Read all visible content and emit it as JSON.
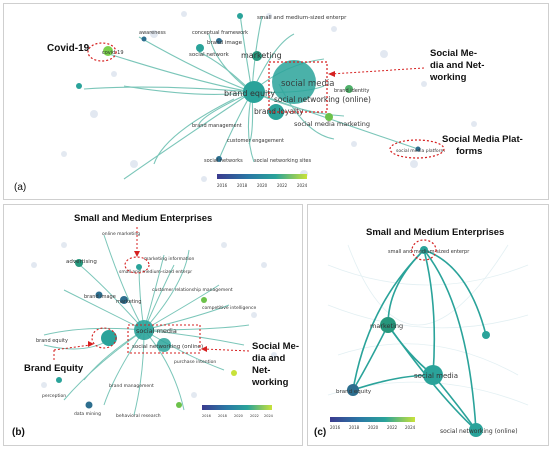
{
  "panels": {
    "a": {
      "label": "(a)",
      "annotations": {
        "covid": "Covid-19",
        "social_media_networking_1": "Social Me-",
        "social_media_networking_2": "dia and Net-",
        "social_media_networking_3": "working",
        "platforms_1": "Social Media Plat-",
        "platforms_2": "forms"
      },
      "nodes": {
        "marketing": "marketing",
        "social_media": "social media",
        "social_networking_online": "social networking (online)",
        "brand_equity": "brand equity",
        "brand_loyalty": "brand loyalty",
        "sme": "small and medium-sized enterpr",
        "social_network": "social network",
        "brand_image": "brand image",
        "conceptual_framework": "conceptual framework",
        "awareness": "awareness",
        "covid19": "covid-19",
        "brand_management": "brand management",
        "customer_engagement": "customer engagement",
        "social_networks": "social networks",
        "social_networking_sites": "social networking sites",
        "social_media_platform": "social media platform",
        "social_media_marketing": "social media marketing",
        "brand_identity": "brand identity"
      },
      "legend": [
        "2016",
        "2018",
        "2020",
        "2022",
        "2024"
      ]
    },
    "b": {
      "label": "(b)",
      "annotations": {
        "sme": "Small and Medium Enterprises",
        "brand_equity": "Brand Equity",
        "networking_1": "Social Me-",
        "networking_2": "dia and Net-",
        "networking_3": "working"
      },
      "nodes": {
        "sme": "small and medium-sized enterpr",
        "social_media": "social media",
        "social_networking_online": "social networking (online)",
        "brand_equity": "brand equity",
        "marketing": "marketing",
        "advertising": "advertising",
        "online_marketing": "online marketing",
        "brand_image": "brand image",
        "customer_relationship_management": "customer relationship management",
        "competitive_intelligence": "competitive intelligence",
        "purchase_intention": "purchase intention",
        "data_mining": "data mining",
        "brand_management": "brand management",
        "behavioral_research": "behavioral research",
        "perception": "perception",
        "marketing_information": "marketing information"
      },
      "legend": [
        "2016",
        "2018",
        "2020",
        "2022",
        "2024"
      ]
    },
    "c": {
      "label": "(c)",
      "annotations": {
        "sme": "Small and Medium Enterprises"
      },
      "nodes": {
        "sme": "small and medium-sized enterpr",
        "marketing": "marketing",
        "social_media": "social media",
        "brand_equity": "brand equity",
        "social_networking_online": "social networking (online)"
      },
      "legend": [
        "2016",
        "2018",
        "2020",
        "2022",
        "2024"
      ]
    }
  },
  "colors": {
    "annotation_red": "#d62020",
    "node_teal": "#2aa39a",
    "node_dark": "#2d6e8e",
    "node_green": "#6cc24a",
    "edge": "#5bb8a8"
  }
}
